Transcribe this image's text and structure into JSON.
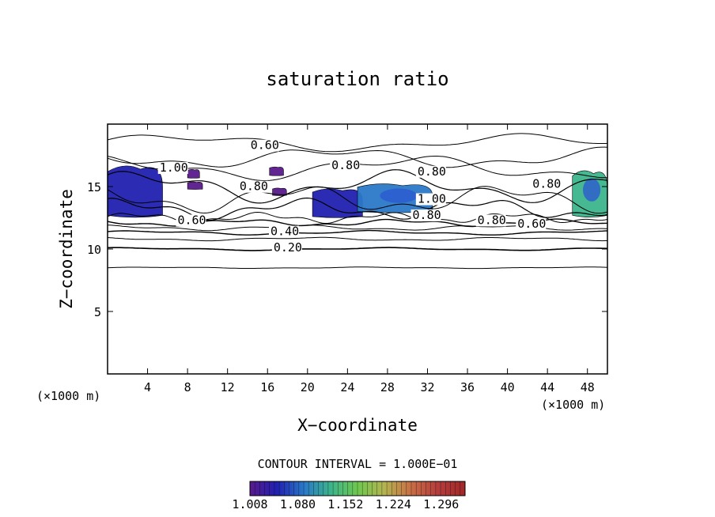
{
  "chart_data": {
    "type": "heatmap",
    "title": "saturation ratio",
    "xlabel": "X−coordinate",
    "ylabel": "Z−coordinate",
    "x_unit": "(×1000 m)",
    "x_unit_right": "(×1000 m)",
    "xlim": [
      0,
      50
    ],
    "ylim": [
      0,
      20
    ],
    "x_ticks": [
      "4",
      "8",
      "12",
      "16",
      "20",
      "24",
      "28",
      "32",
      "36",
      "40",
      "44",
      "48"
    ],
    "y_ticks": [
      "5",
      "10",
      "15"
    ],
    "contour_interval_text": "CONTOUR INTERVAL = 1.000E−01",
    "contour_labels": [
      {
        "text": "0.60",
        "x": 14.3,
        "z": 18.0
      },
      {
        "text": "0.80",
        "x": 22.4,
        "z": 16.4
      },
      {
        "text": "0.80",
        "x": 31.0,
        "z": 15.9
      },
      {
        "text": "0.80",
        "x": 13.2,
        "z": 14.7
      },
      {
        "text": "0.80",
        "x": 42.5,
        "z": 14.9
      },
      {
        "text": "0.80",
        "x": 30.5,
        "z": 12.4
      },
      {
        "text": "0.80",
        "x": 37.0,
        "z": 12.0
      },
      {
        "text": "0.60",
        "x": 7.0,
        "z": 12.0
      },
      {
        "text": "0.60",
        "x": 41.0,
        "z": 11.7
      },
      {
        "text": "0.40",
        "x": 16.3,
        "z": 11.1
      },
      {
        "text": "0.20",
        "x": 16.6,
        "z": 9.8
      },
      {
        "text": "1.00",
        "x": 5.2,
        "z": 16.2
      },
      {
        "text": "1.00",
        "x": 31.0,
        "z": 13.7
      }
    ],
    "colorbar": {
      "min": 1.008,
      "max": 1.332,
      "tick_labels": [
        "1.008",
        "1.080",
        "1.152",
        "1.224",
        "1.296"
      ],
      "colors": [
        "#5a1a8c",
        "#2020b0",
        "#2a78c8",
        "#3cb48c",
        "#6ec850",
        "#b4b450",
        "#c86e46",
        "#b43c3c",
        "#a02828"
      ]
    },
    "supersaturated_regions": [
      {
        "name": "left",
        "x": [
          0,
          5.5
        ],
        "z": [
          12.7,
          16.8
        ],
        "peak": 1.04
      },
      {
        "name": "small-1",
        "x": [
          8.0,
          9.2
        ],
        "z": [
          15.7,
          16.4
        ],
        "peak": 1.02
      },
      {
        "name": "small-2",
        "x": [
          16.2,
          17.6
        ],
        "z": [
          15.9,
          16.6
        ],
        "peak": 1.02
      },
      {
        "name": "small-3",
        "x": [
          8.0,
          9.5
        ],
        "z": [
          14.8,
          15.4
        ],
        "peak": 1.02
      },
      {
        "name": "small-4",
        "x": [
          16.5,
          17.9
        ],
        "z": [
          14.3,
          14.9
        ],
        "peak": 1.02
      },
      {
        "name": "center",
        "x": [
          20.5,
          25.5
        ],
        "z": [
          12.6,
          14.9
        ],
        "peak": 1.05
      },
      {
        "name": "center-right",
        "x": [
          25.0,
          32.5
        ],
        "z": [
          13.0,
          15.3
        ],
        "peak": 1.08
      },
      {
        "name": "right",
        "x": [
          46.5,
          50
        ],
        "z": [
          12.7,
          16.4
        ],
        "peak": 1.12
      }
    ],
    "grid": false
  }
}
